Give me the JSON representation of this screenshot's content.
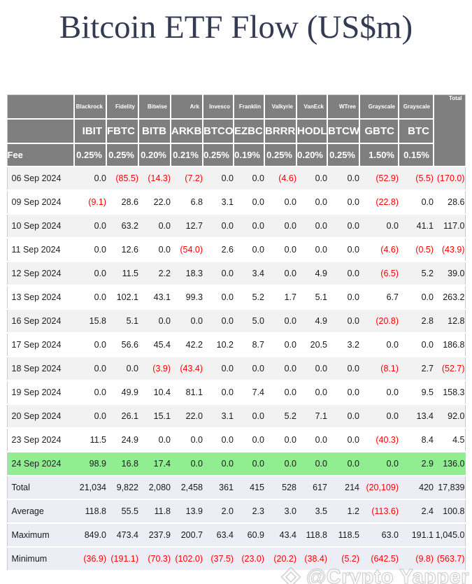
{
  "title": "Bitcoin ETF Flow (US$m)",
  "watermark": {
    "handle": "@Crypto Yapper"
  },
  "colors": {
    "header_bg": "#7F7F7F",
    "negative": "#FE0000",
    "positive": "#1A1A1A",
    "highlight_row": "#90EE90",
    "summary_bg": "#ECEDF5",
    "alt_row": "#F2F2F2",
    "title": "#333A52"
  },
  "chart_data": {
    "type": "table",
    "title": "Bitcoin ETF Flow (US$m)",
    "issuers": [
      "Blackrock",
      "Fidelity",
      "Bitwise",
      "Ark",
      "Invesco",
      "Franklin",
      "Valkyrie",
      "VanEck",
      "WTree",
      "Grayscale",
      "Grayscale"
    ],
    "tickers": [
      "IBIT",
      "FBTC",
      "BITB",
      "ARKB",
      "BTCO",
      "EZBC",
      "BRRR",
      "HODL",
      "BTCW",
      "GBTC",
      "BTC"
    ],
    "total_label": "Total",
    "fee_label": "Fee",
    "fees": [
      "0.25%",
      "0.25%",
      "0.20%",
      "0.21%",
      "0.25%",
      "0.19%",
      "0.25%",
      "0.20%",
      "0.25%",
      "1.50%",
      "0.15%"
    ],
    "rows": [
      {
        "date": "06 Sep 2024",
        "highlight": false,
        "values": [
          "0.0",
          "(85.5)",
          "(14.3)",
          "(7.2)",
          "0.0",
          "0.0",
          "(4.6)",
          "0.0",
          "0.0",
          "(52.9)",
          "(5.5)",
          "(170.0)"
        ]
      },
      {
        "date": "09 Sep 2024",
        "highlight": false,
        "values": [
          "(9.1)",
          "28.6",
          "22.0",
          "6.8",
          "3.1",
          "0.0",
          "0.0",
          "0.0",
          "0.0",
          "(22.8)",
          "0.0",
          "28.6"
        ]
      },
      {
        "date": "10 Sep 2024",
        "highlight": false,
        "values": [
          "0.0",
          "63.2",
          "0.0",
          "12.7",
          "0.0",
          "0.0",
          "0.0",
          "0.0",
          "0.0",
          "0.0",
          "41.1",
          "117.0"
        ]
      },
      {
        "date": "11 Sep 2024",
        "highlight": false,
        "values": [
          "0.0",
          "12.6",
          "0.0",
          "(54.0)",
          "2.6",
          "0.0",
          "0.0",
          "0.0",
          "0.0",
          "(4.6)",
          "(0.5)",
          "(43.9)"
        ]
      },
      {
        "date": "12 Sep 2024",
        "highlight": false,
        "values": [
          "0.0",
          "11.5",
          "2.2",
          "18.3",
          "0.0",
          "3.4",
          "0.0",
          "4.9",
          "0.0",
          "(6.5)",
          "5.2",
          "39.0"
        ]
      },
      {
        "date": "13 Sep 2024",
        "highlight": false,
        "values": [
          "0.0",
          "102.1",
          "43.1",
          "99.3",
          "0.0",
          "5.2",
          "1.7",
          "5.1",
          "0.0",
          "6.7",
          "0.0",
          "263.2"
        ]
      },
      {
        "date": "16 Sep 2024",
        "highlight": false,
        "values": [
          "15.8",
          "5.1",
          "0.0",
          "0.0",
          "0.0",
          "5.0",
          "0.0",
          "4.9",
          "0.0",
          "(20.8)",
          "2.8",
          "12.8"
        ]
      },
      {
        "date": "17 Sep 2024",
        "highlight": false,
        "values": [
          "0.0",
          "56.6",
          "45.4",
          "42.2",
          "10.2",
          "8.7",
          "0.0",
          "20.5",
          "3.2",
          "0.0",
          "0.0",
          "186.8"
        ]
      },
      {
        "date": "18 Sep 2024",
        "highlight": false,
        "values": [
          "0.0",
          "0.0",
          "(3.9)",
          "(43.4)",
          "0.0",
          "0.0",
          "0.0",
          "0.0",
          "0.0",
          "(8.1)",
          "2.7",
          "(52.7)"
        ]
      },
      {
        "date": "19 Sep 2024",
        "highlight": false,
        "values": [
          "0.0",
          "49.9",
          "10.4",
          "81.1",
          "0.0",
          "7.4",
          "0.0",
          "0.0",
          "0.0",
          "0.0",
          "9.5",
          "158.3"
        ]
      },
      {
        "date": "20 Sep 2024",
        "highlight": false,
        "values": [
          "0.0",
          "26.1",
          "15.1",
          "22.0",
          "3.1",
          "0.0",
          "5.2",
          "7.1",
          "0.0",
          "0.0",
          "13.4",
          "92.0"
        ]
      },
      {
        "date": "23 Sep 2024",
        "highlight": false,
        "values": [
          "11.5",
          "24.9",
          "0.0",
          "0.0",
          "0.0",
          "0.0",
          "0.0",
          "0.0",
          "0.0",
          "(40.3)",
          "8.4",
          "4.5"
        ]
      },
      {
        "date": "24 Sep 2024",
        "highlight": true,
        "values": [
          "98.9",
          "16.8",
          "17.4",
          "0.0",
          "0.0",
          "0.0",
          "0.0",
          "0.0",
          "0.0",
          "0.0",
          "2.9",
          "136.0"
        ]
      }
    ],
    "summary": [
      {
        "label": "Total",
        "values": [
          "21,034",
          "9,822",
          "2,080",
          "2,458",
          "361",
          "415",
          "528",
          "617",
          "214",
          "(20,109)",
          "420",
          "17,839"
        ]
      },
      {
        "label": "Average",
        "values": [
          "118.8",
          "55.5",
          "11.8",
          "13.9",
          "2.0",
          "2.3",
          "3.0",
          "3.5",
          "1.2",
          "(113.6)",
          "2.4",
          "100.8"
        ]
      },
      {
        "label": "Maximum",
        "values": [
          "849.0",
          "473.4",
          "237.9",
          "200.7",
          "63.4",
          "60.9",
          "43.4",
          "118.8",
          "118.5",
          "63.0",
          "191.1",
          "1,045.0"
        ]
      },
      {
        "label": "Minimum",
        "values": [
          "(36.9)",
          "(191.1)",
          "(70.3)",
          "(102.0)",
          "(37.5)",
          "(23.0)",
          "(20.2)",
          "(38.4)",
          "(5.2)",
          "(642.5)",
          "(9.8)",
          "(563.7)"
        ]
      }
    ]
  }
}
